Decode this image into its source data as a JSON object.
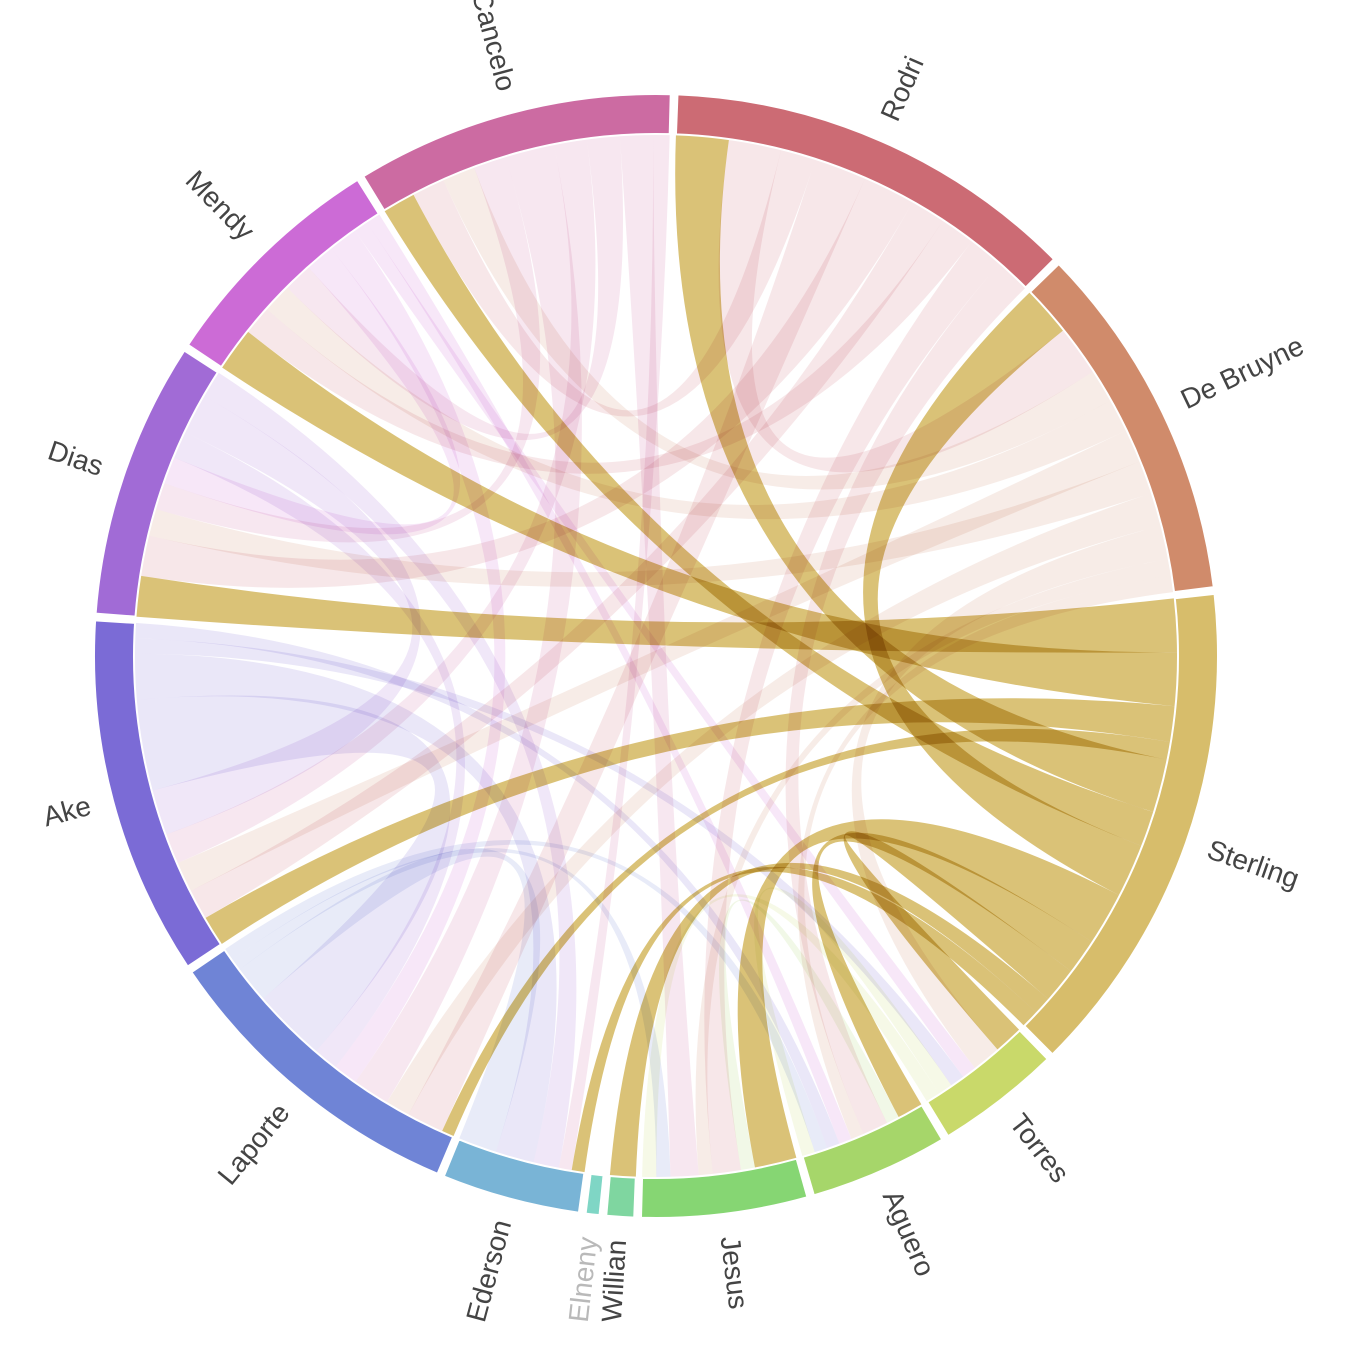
{
  "chart_data": {
    "type": "chord",
    "title": "",
    "groups": [
      {
        "name": "Sterling",
        "weight": 36,
        "color": "#d7bd6b",
        "muted": false
      },
      {
        "name": "Torres",
        "weight": 9,
        "color": "#c9d96a",
        "muted": false
      },
      {
        "name": "Aguero",
        "weight": 10,
        "color": "#a6d66a",
        "muted": false
      },
      {
        "name": "Jesus",
        "weight": 12,
        "color": "#86d673",
        "muted": false
      },
      {
        "name": "Willian",
        "weight": 2,
        "color": "#7fd6a0",
        "muted": false
      },
      {
        "name": "Elneny",
        "weight": 1,
        "color": "#7fd6c5",
        "muted": true
      },
      {
        "name": "Ederson",
        "weight": 10,
        "color": "#79b4d6",
        "muted": false
      },
      {
        "name": "Laporte",
        "weight": 23,
        "color": "#6f84d6",
        "muted": false
      },
      {
        "name": "Ake",
        "weight": 26,
        "color": "#7b6bd6",
        "muted": false
      },
      {
        "name": "Dias",
        "weight": 20,
        "color": "#a16bd6",
        "muted": false
      },
      {
        "name": "Mendy",
        "weight": 17,
        "color": "#cc6bd6",
        "muted": false
      },
      {
        "name": "Cancelo",
        "weight": 23,
        "color": "#cc6ba2",
        "muted": false
      },
      {
        "name": "Rodri",
        "weight": 30,
        "color": "#cc6b74",
        "muted": false
      },
      {
        "name": "De Bruyne",
        "weight": 26,
        "color": "#d08b6b",
        "muted": false
      }
    ],
    "highlighted_group": "Sterling",
    "links": [
      {
        "source": "Sterling",
        "target": "Dias",
        "value": 3
      },
      {
        "source": "Sterling",
        "target": "Mendy",
        "value": 3
      },
      {
        "source": "Sterling",
        "target": "Ake",
        "value": 2
      },
      {
        "source": "Sterling",
        "target": "Laporte",
        "value": 1
      },
      {
        "source": "Sterling",
        "target": "Rodri",
        "value": 3
      },
      {
        "source": "Sterling",
        "target": "Cancelo",
        "value": 2
      },
      {
        "source": "Sterling",
        "target": "De Bruyne",
        "value": 3
      },
      {
        "source": "Sterling",
        "target": "Jesus",
        "value": 3
      },
      {
        "source": "Sterling",
        "target": "Aguero",
        "value": 2
      },
      {
        "source": "Sterling",
        "target": "Torres",
        "value": 2
      },
      {
        "source": "Sterling",
        "target": "Willian",
        "value": 1
      },
      {
        "source": "Sterling",
        "target": "Ederson",
        "value": 1
      },
      {
        "source": "Aguero",
        "target": "Jesus",
        "value": 1
      },
      {
        "source": "Rodri",
        "target": "De Bruyne",
        "value": 3
      },
      {
        "source": "Rodri",
        "target": "Cancelo",
        "value": 2
      },
      {
        "source": "Rodri",
        "target": "Laporte",
        "value": 3
      },
      {
        "source": "Rodri",
        "target": "Dias",
        "value": 3
      },
      {
        "source": "Rodri",
        "target": "Ake",
        "value": 2
      },
      {
        "source": "Rodri",
        "target": "Mendy",
        "value": 2
      },
      {
        "source": "Rodri",
        "target": "Jesus",
        "value": 2
      },
      {
        "source": "Rodri",
        "target": "Aguero",
        "value": 2
      },
      {
        "source": "De Bruyne",
        "target": "Cancelo",
        "value": 2
      },
      {
        "source": "De Bruyne",
        "target": "Mendy",
        "value": 2
      },
      {
        "source": "De Bruyne",
        "target": "Ake",
        "value": 2
      },
      {
        "source": "De Bruyne",
        "target": "Dias",
        "value": 2
      },
      {
        "source": "De Bruyne",
        "target": "Laporte",
        "value": 2
      },
      {
        "source": "De Bruyne",
        "target": "Torres",
        "value": 2
      },
      {
        "source": "De Bruyne",
        "target": "Jesus",
        "value": 1
      },
      {
        "source": "De Bruyne",
        "target": "Aguero",
        "value": 1
      },
      {
        "source": "Cancelo",
        "target": "Dias",
        "value": 2
      },
      {
        "source": "Cancelo",
        "target": "Laporte",
        "value": 3
      },
      {
        "source": "Cancelo",
        "target": "Ake",
        "value": 2
      },
      {
        "source": "Cancelo",
        "target": "Mendy",
        "value": 2
      },
      {
        "source": "Cancelo",
        "target": "Jesus",
        "value": 2
      },
      {
        "source": "Cancelo",
        "target": "Ederson",
        "value": 1
      },
      {
        "source": "Mendy",
        "target": "Dias",
        "value": 2
      },
      {
        "source": "Mendy",
        "target": "Laporte",
        "value": 2
      },
      {
        "source": "Mendy",
        "target": "Torres",
        "value": 1
      },
      {
        "source": "Mendy",
        "target": "Aguero",
        "value": 1
      },
      {
        "source": "Dias",
        "target": "Laporte",
        "value": 2
      },
      {
        "source": "Dias",
        "target": "Ake",
        "value": 3
      },
      {
        "source": "Dias",
        "target": "Ederson",
        "value": 2
      },
      {
        "source": "Ake",
        "target": "Laporte",
        "value": 6
      },
      {
        "source": "Ake",
        "target": "Ederson",
        "value": 3
      },
      {
        "source": "Ake",
        "target": "Torres",
        "value": 1
      },
      {
        "source": "Ake",
        "target": "Aguero",
        "value": 1
      },
      {
        "source": "Laporte",
        "target": "Ederson",
        "value": 3
      },
      {
        "source": "Laporte",
        "target": "Jesus",
        "value": 1
      },
      {
        "source": "Laporte",
        "target": "Aguero",
        "value": 1
      },
      {
        "source": "Torres",
        "target": "Aguero",
        "value": 1
      },
      {
        "source": "Torres",
        "target": "Jesus",
        "value": 1
      }
    ]
  }
}
